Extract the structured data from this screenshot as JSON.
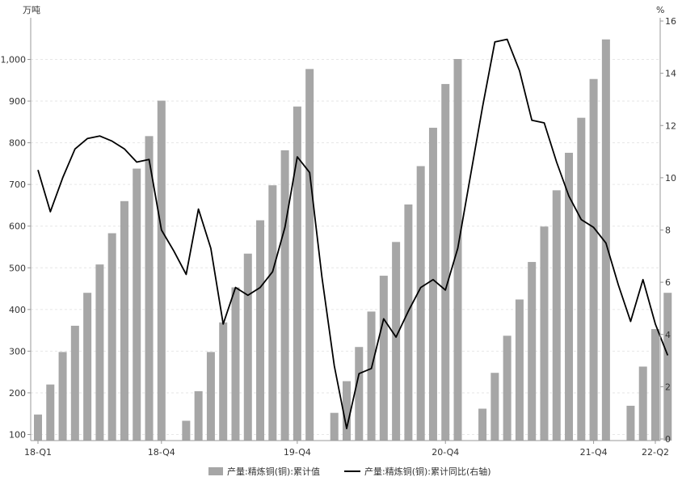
{
  "chart_data": {
    "type": "bar",
    "left_unit": "万吨",
    "right_unit": "%",
    "y_left": {
      "min": 100,
      "max": 1000,
      "ticks": [
        100,
        200,
        300,
        400,
        500,
        600,
        700,
        800,
        900,
        1000
      ],
      "tick_labels": [
        "100",
        "200",
        "300",
        "400",
        "500",
        "600",
        "700",
        "800",
        "900",
        "1,000"
      ]
    },
    "y_right": {
      "min": 0,
      "max": 16,
      "ticks": [
        0,
        2,
        4,
        6,
        8,
        10,
        12,
        14,
        16
      ],
      "tick_labels": [
        "0",
        "2",
        "4",
        "6",
        "8",
        "10",
        "12",
        "14",
        "16"
      ]
    },
    "x_tick_labels": [
      {
        "label": "18-Q1",
        "index": 0
      },
      {
        "label": "18-Q4",
        "index": 10
      },
      {
        "label": "19-Q4",
        "index": 21
      },
      {
        "label": "20-Q4",
        "index": 33
      },
      {
        "label": "21-Q4",
        "index": 45
      },
      {
        "label": "22-Q2",
        "index": 50
      }
    ],
    "grid": "horizontal-dashed",
    "legend_position": "bottom",
    "colors": {
      "bar": "#a6a6a6",
      "line": "#000000",
      "axis": "#999999",
      "grid": "#e6e6e6"
    },
    "series": [
      {
        "name": "产量:精炼铜(铜):累计值",
        "type": "bar",
        "axis": "left",
        "values": [
          148,
          220,
          298,
          361,
          440,
          508,
          583,
          660,
          738,
          816,
          901,
          null,
          133,
          204,
          298,
          369,
          453,
          534,
          614,
          698,
          782,
          887,
          977,
          null,
          152,
          228,
          310,
          395,
          481,
          562,
          652,
          744,
          836,
          941,
          1001,
          null,
          162,
          248,
          337,
          424,
          514,
          599,
          686,
          776,
          860,
          953,
          1048,
          null,
          169,
          263,
          353,
          440
        ]
      },
      {
        "name": "产量:精炼铜(铜):累计同比(右轴)",
        "type": "line",
        "axis": "right",
        "values": [
          10.3,
          8.7,
          10.0,
          11.1,
          11.5,
          11.6,
          11.4,
          11.1,
          10.6,
          10.7,
          8.0,
          7.2,
          6.3,
          8.8,
          7.3,
          4.4,
          5.8,
          5.5,
          5.8,
          6.4,
          8.1,
          10.8,
          10.2,
          6.2,
          2.8,
          0.4,
          2.5,
          2.7,
          4.6,
          3.9,
          4.9,
          5.8,
          6.1,
          5.7,
          7.3,
          10.0,
          12.7,
          15.2,
          15.3,
          14.1,
          12.2,
          12.1,
          10.6,
          9.3,
          8.4,
          8.1,
          7.5,
          5.9,
          4.5,
          6.1,
          4.4,
          3.2
        ]
      }
    ]
  }
}
